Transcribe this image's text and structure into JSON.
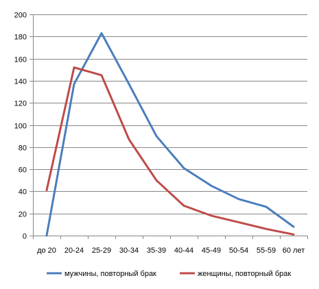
{
  "chart_data": {
    "type": "line",
    "title": "",
    "xlabel": "",
    "ylabel": "",
    "categories": [
      "до 20",
      "20-24",
      "25-29",
      "30-34",
      "35-39",
      "40-44",
      "45-49",
      "50-54",
      "55-59",
      "60 лет"
    ],
    "ylim": [
      0,
      200
    ],
    "yticks": [
      0,
      20,
      40,
      60,
      80,
      100,
      120,
      140,
      160,
      180,
      200
    ],
    "grid": true,
    "legend_position": "bottom",
    "series": [
      {
        "name": "мужчины, повторный брак",
        "color": "#4a7ebb",
        "values": [
          0,
          137,
          183,
          137,
          90,
          61,
          45,
          33,
          26,
          8
        ]
      },
      {
        "name": "женщины, повторный брак",
        "color": "#be4b48",
        "values": [
          41,
          152,
          145,
          87,
          50,
          27,
          18,
          12,
          6,
          1
        ]
      }
    ]
  }
}
